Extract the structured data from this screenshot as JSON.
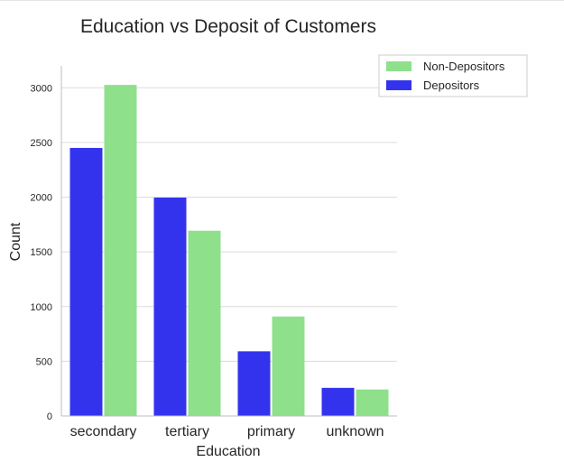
{
  "chart_data": {
    "type": "bar",
    "title": "Education vs Deposit of Customers",
    "xlabel": "Education",
    "ylabel": "Count",
    "categories": [
      "secondary",
      "tertiary",
      "primary",
      "unknown"
    ],
    "series": [
      {
        "name": "Depositors",
        "color": "#3333ee",
        "values": [
          2450,
          1996,
          591,
          257
        ]
      },
      {
        "name": "Non-Depositors",
        "color": "#8fe08b",
        "values": [
          3026,
          1693,
          909,
          242
        ]
      }
    ],
    "legend_order": [
      1,
      0
    ],
    "ylim": [
      0,
      3200
    ],
    "yticks": [
      0,
      500,
      1000,
      1500,
      2000,
      2500,
      3000
    ],
    "grid": "horizontal",
    "legend_position": "top-right"
  }
}
